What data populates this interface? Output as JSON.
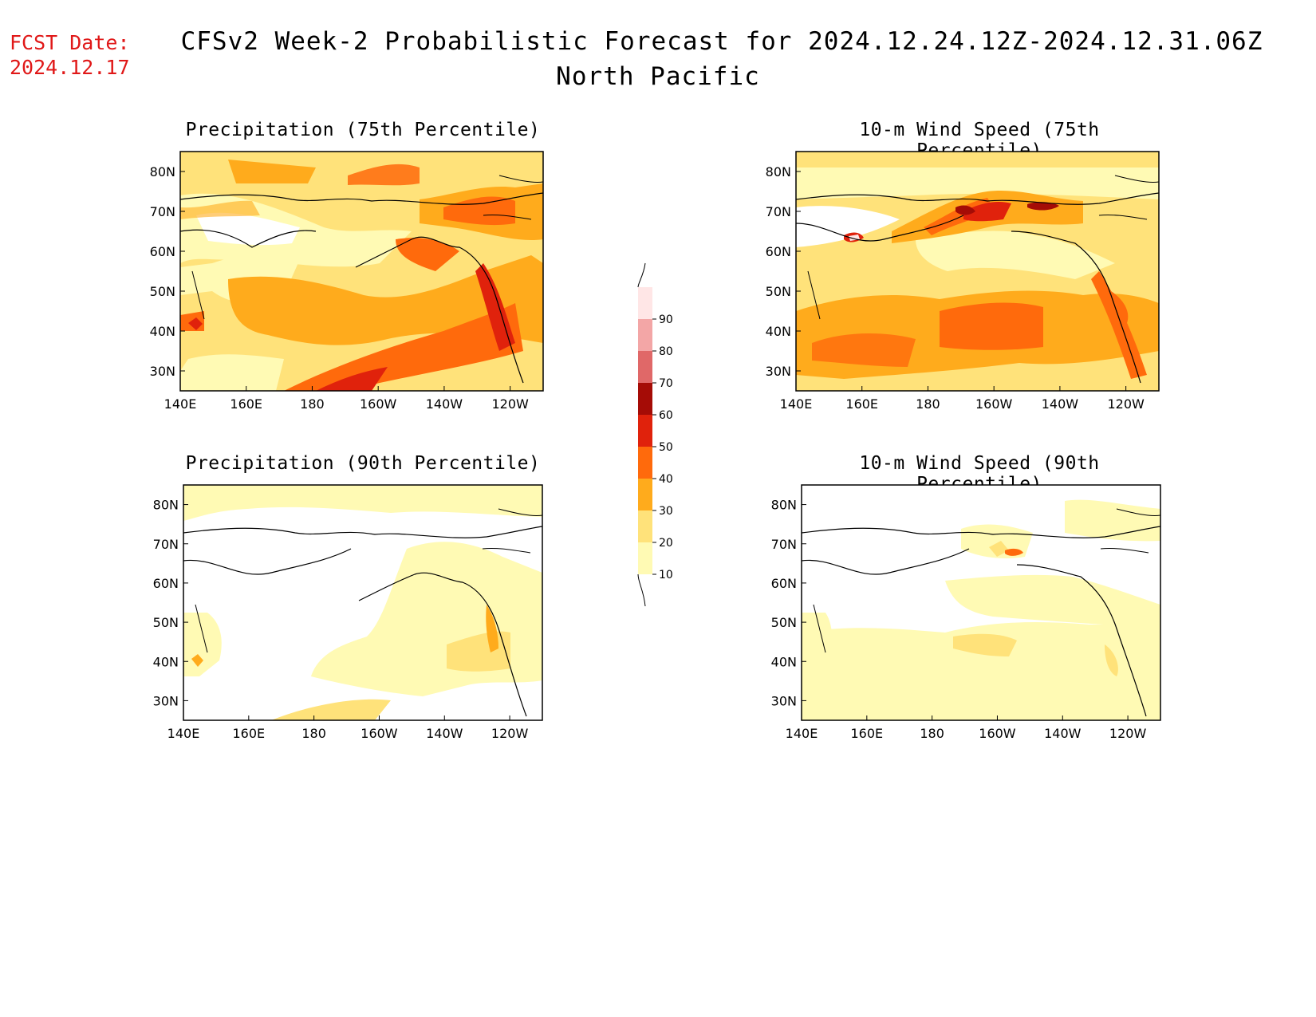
{
  "header": {
    "fcst_label": "FCST Date:",
    "fcst_date": "2024.12.17",
    "title": "CFSv2 Week-2 Probabilistic Forecast for 2024.12.24.12Z-2024.12.31.06Z",
    "subtitle": "North Pacific"
  },
  "panels": [
    {
      "title": "Precipitation (75th Percentile)"
    },
    {
      "title": "10-m Wind Speed (75th Percentile)"
    },
    {
      "title": "Precipitation (90th Percentile)"
    },
    {
      "title": "10-m Wind Speed (90th Percentile)"
    }
  ],
  "axes": {
    "lat_labels": [
      "80N",
      "70N",
      "60N",
      "50N",
      "40N",
      "30N"
    ],
    "lon_labels": [
      "140E",
      "160E",
      "180",
      "160W",
      "140W",
      "120W"
    ]
  },
  "colorbar": {
    "levels": [
      "10",
      "20",
      "30",
      "40",
      "50",
      "60",
      "70",
      "80",
      "90"
    ],
    "colors": [
      "#fffab4",
      "#ffe27a",
      "#ffab1c",
      "#ff6a0c",
      "#e0220c",
      "#a50c06",
      "#e06868",
      "#f3a6a6",
      "#ffe6e6"
    ]
  }
}
